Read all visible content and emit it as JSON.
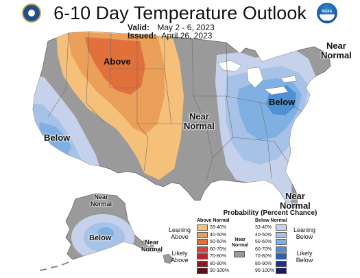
{
  "header": {
    "title": "6-10 Day Temperature Outlook",
    "valid_label": "Valid:",
    "valid_value": "May 2 - 6, 2023",
    "issued_label": "Issued:",
    "issued_value": "April 26, 2023"
  },
  "logos": {
    "left": "department-of-commerce-seal",
    "right": "noaa-logo",
    "right_text": "NOAA"
  },
  "labels": {
    "above": "Above",
    "below_west": "Below",
    "below_east": "Below",
    "below_alaska": "Below",
    "near_normal_central_1": "Near",
    "near_normal_central_2": "Normal",
    "near_normal_ne_1": "Near",
    "near_normal_ne_2": "Normal",
    "near_normal_se_1": "Near",
    "near_normal_se_2": "Normal",
    "near_normal_ak_1": "Near",
    "near_normal_ak_2": "Normal",
    "near_normal_hi_1": "Near",
    "near_normal_hi_2": "Normal"
  },
  "legend": {
    "title": "Probability (Percent Chance)",
    "above_header": "Above Normal",
    "below_header": "Below Normal",
    "near_header_1": "Near",
    "near_header_2": "Normal",
    "leaning_above_1": "Leaning",
    "leaning_above_2": "Above",
    "likely_above_1": "Likely",
    "likely_above_2": "Above",
    "leaning_below_1": "Leaning",
    "leaning_below_2": "Below",
    "likely_below_1": "Likely",
    "likely_below_2": "Below",
    "bins": [
      "33-40%",
      "40-50%",
      "50-60%",
      "60-70%",
      "70-80%",
      "80-90%",
      "90-100%"
    ],
    "above_colors": [
      "#f5c07a",
      "#eba059",
      "#e2703a",
      "#d4433c",
      "#b8262c",
      "#8e1a1f",
      "#5e0f12"
    ],
    "below_colors": [
      "#c6d2ec",
      "#a6c2e6",
      "#7fb0e1",
      "#4f8fd4",
      "#2a63b5",
      "#22328a",
      "#1a1a5e"
    ],
    "near_color": "#9a9a9a"
  },
  "colors": {
    "near_normal": "#9a9a9a",
    "above_33": "#f5c07a",
    "above_40": "#eba059",
    "above_50": "#e2703a",
    "below_33": "#c6d2ec",
    "below_40": "#a6c2e6",
    "below_50": "#7fb0e1"
  }
}
